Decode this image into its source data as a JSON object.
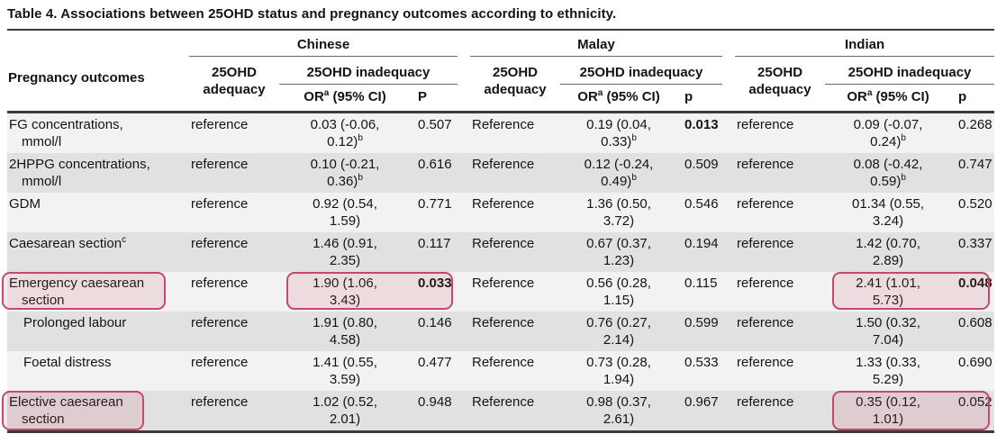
{
  "table": {
    "title": "Table 4.  Associations between 25OHD status and pregnancy outcomes according to ethnicity.",
    "row_header": "Pregnancy outcomes",
    "groups": [
      {
        "name": "Chinese",
        "adequacy": "25OHD adequacy",
        "inadequacy": "25OHD inadequacy",
        "or_header": "OR",
        "or_sup": "a",
        "or_rest": " (95% CI)",
        "p_header": "P"
      },
      {
        "name": "Malay",
        "adequacy": "25OHD adequacy",
        "inadequacy": "25OHD inadequacy",
        "or_header": "OR",
        "or_sup": "a",
        "or_rest": " (95% CI)",
        "p_header": "p"
      },
      {
        "name": "Indian",
        "adequacy": "25OHD adequacy",
        "inadequacy": "25OHD inadequacy",
        "or_header": "OR",
        "or_sup": "a",
        "or_rest": " (95% CI)",
        "p_header": "p"
      }
    ]
  },
  "rows": [
    {
      "outcome1": "FG concentrations,",
      "outcome2": "mmol/l",
      "outcome_sup": "",
      "indent": false,
      "cells": [
        {
          "adequacy": "reference",
          "or1": "0.03 (-0.06,",
          "or2": "0.12)",
          "or_sup": "b",
          "p": "0.507",
          "p_bold": false
        },
        {
          "adequacy": "Reference",
          "or1": "0.19 (0.04,",
          "or2": "0.33)",
          "or_sup": "b",
          "p": "0.013",
          "p_bold": true
        },
        {
          "adequacy": "reference",
          "or1": "0.09 (-0.07,",
          "or2": "0.24)",
          "or_sup": "b",
          "p": "0.268",
          "p_bold": false
        }
      ]
    },
    {
      "outcome1": "2HPPG concentrations,",
      "outcome2": "mmol/l",
      "outcome_sup": "",
      "indent": false,
      "cells": [
        {
          "adequacy": "reference",
          "or1": "0.10 (-0.21,",
          "or2": "0.36)",
          "or_sup": "b",
          "p": "0.616",
          "p_bold": false
        },
        {
          "adequacy": "Reference",
          "or1": "0.12 (-0.24,",
          "or2": "0.49)",
          "or_sup": "b",
          "p": "0.509",
          "p_bold": false
        },
        {
          "adequacy": "reference",
          "or1": "0.08 (-0.42,",
          "or2": "0.59)",
          "or_sup": "b",
          "p": "0.747",
          "p_bold": false
        }
      ]
    },
    {
      "outcome1": "GDM",
      "outcome2": "",
      "outcome_sup": "",
      "indent": false,
      "cells": [
        {
          "adequacy": "reference",
          "or1": "0.92 (0.54,",
          "or2": "1.59)",
          "or_sup": "",
          "p": "0.771",
          "p_bold": false
        },
        {
          "adequacy": "Reference",
          "or1": "1.36 (0.50,",
          "or2": "3.72)",
          "or_sup": "",
          "p": "0.546",
          "p_bold": false
        },
        {
          "adequacy": "reference",
          "or1": "01.34 (0.55,",
          "or2": "3.24)",
          "or_sup": "",
          "p": "0.520",
          "p_bold": false
        }
      ]
    },
    {
      "outcome1": "Caesarean section",
      "outcome2": "",
      "outcome_sup": "c",
      "indent": false,
      "cells": [
        {
          "adequacy": "reference",
          "or1": "1.46 (0.91,",
          "or2": "2.35)",
          "or_sup": "",
          "p": "0.117",
          "p_bold": false
        },
        {
          "adequacy": "Reference",
          "or1": "0.67 (0.37,",
          "or2": "1.23)",
          "or_sup": "",
          "p": "0.194",
          "p_bold": false
        },
        {
          "adequacy": "reference",
          "or1": "1.42 (0.70,",
          "or2": "2.89)",
          "or_sup": "",
          "p": "0.337",
          "p_bold": false
        }
      ]
    },
    {
      "outcome1": "Emergency caesarean",
      "outcome2": "section",
      "outcome_sup": "",
      "indent": false,
      "cells": [
        {
          "adequacy": "reference",
          "or1": "1.90 (1.06,",
          "or2": "3.43)",
          "or_sup": "",
          "p": "0.033",
          "p_bold": true
        },
        {
          "adequacy": "Reference",
          "or1": "0.56 (0.28,",
          "or2": "1.15)",
          "or_sup": "",
          "p": "0.115",
          "p_bold": false
        },
        {
          "adequacy": "reference",
          "or1": "2.41 (1.01,",
          "or2": "5.73)",
          "or_sup": "",
          "p": "0.048",
          "p_bold": true
        }
      ]
    },
    {
      "outcome1": "Prolonged labour",
      "outcome2": "",
      "outcome_sup": "",
      "indent": true,
      "cells": [
        {
          "adequacy": "reference",
          "or1": "1.91 (0.80,",
          "or2": "4.58)",
          "or_sup": "",
          "p": "0.146",
          "p_bold": false
        },
        {
          "adequacy": "Reference",
          "or1": "0.76 (0.27,",
          "or2": "2.14)",
          "or_sup": "",
          "p": "0.599",
          "p_bold": false
        },
        {
          "adequacy": "reference",
          "or1": "1.50 (0.32,",
          "or2": "7.04)",
          "or_sup": "",
          "p": "0.608",
          "p_bold": false
        }
      ]
    },
    {
      "outcome1": "Foetal distress",
      "outcome2": "",
      "outcome_sup": "",
      "indent": true,
      "cells": [
        {
          "adequacy": "reference",
          "or1": "1.41 (0.55,",
          "or2": "3.59)",
          "or_sup": "",
          "p": "0.477",
          "p_bold": false
        },
        {
          "adequacy": "Reference",
          "or1": "0.73 (0.28,",
          "or2": "1.94)",
          "or_sup": "",
          "p": "0.533",
          "p_bold": false
        },
        {
          "adequacy": "reference",
          "or1": "1.33 (0.33,",
          "or2": "5.29)",
          "or_sup": "",
          "p": "0.690",
          "p_bold": false
        }
      ]
    },
    {
      "outcome1": "Elective caesarean",
      "outcome2": "section",
      "outcome_sup": "",
      "indent": false,
      "cells": [
        {
          "adequacy": "reference",
          "or1": "1.02 (0.52,",
          "or2": "2.01)",
          "or_sup": "",
          "p": "0.948",
          "p_bold": false
        },
        {
          "adequacy": "Reference",
          "or1": "0.98 (0.37,",
          "or2": "2.61)",
          "or_sup": "",
          "p": "0.967",
          "p_bold": false
        },
        {
          "adequacy": "reference",
          "or1": "0.35 (0.12,",
          "or2": "1.01)",
          "or_sup": "",
          "p": "0.052",
          "p_bold": false
        }
      ]
    }
  ],
  "highlights": [
    {
      "kind": "outcome",
      "row": 4,
      "width": 182
    },
    {
      "kind": "or_p",
      "row": 4,
      "group": 0
    },
    {
      "kind": "or_p",
      "row": 4,
      "group": 2
    },
    {
      "kind": "outcome",
      "row": 7,
      "width": 158
    },
    {
      "kind": "or_p",
      "row": 7,
      "group": 2
    }
  ],
  "style": {
    "row_light": "#f2f2f2",
    "row_dark": "#e1e1e1",
    "rule_dark": "#3c3c3c",
    "rule_thin": "#6a6a6a",
    "highlight_border": "#c5496b",
    "highlight_fill": "rgba(199,74,110,0.13)"
  }
}
